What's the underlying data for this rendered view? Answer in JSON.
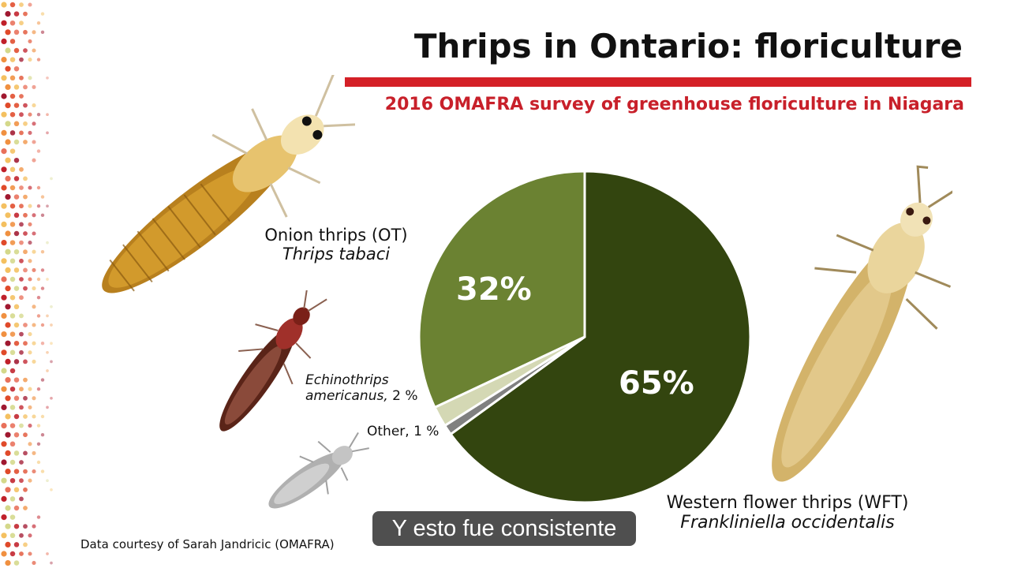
{
  "slide": {
    "title": "Thrips in Ontario: floriculture",
    "subtitle": "2016 OMAFRA survey of greenhouse floriculture in Niagara",
    "credit": "Data courtesy of Sarah Jandricic (OMAFRA)",
    "caption": "Y esto fue consistente",
    "accent_color": "#d42027",
    "subtitle_color": "#c8202a"
  },
  "labels": {
    "ot_common": "Onion thrips (OT)",
    "ot_latin": "Thrips tabaci",
    "echi_line1": "Echinothrips",
    "echi_line2": "americanus,",
    "echi_pct": " 2 %",
    "other": "Other, 1 %",
    "wft_common": "Western flower thrips (WFT)",
    "wft_latin": "Frankliniella occidentalis",
    "pct_ot": "32%",
    "pct_wft": "65%"
  },
  "chart_data": {
    "type": "pie",
    "title": "",
    "start_angle_deg": 0,
    "direction": "clockwise",
    "slices": [
      {
        "label": "Western flower thrips (WFT) Frankliniella occidentalis",
        "value": 65,
        "color": "#33450f"
      },
      {
        "label": "Other",
        "value": 1,
        "color": "#808080"
      },
      {
        "label": "Echinothrips americanus",
        "value": 2,
        "color": "#d4d8b4"
      },
      {
        "label": "Onion thrips (OT) Thrips tabaci",
        "value": 32,
        "color": "#6b8232"
      }
    ]
  },
  "icons": [
    "thrips-onion-icon",
    "thrips-echinothrips-icon",
    "thrips-other-icon",
    "thrips-wft-icon"
  ]
}
